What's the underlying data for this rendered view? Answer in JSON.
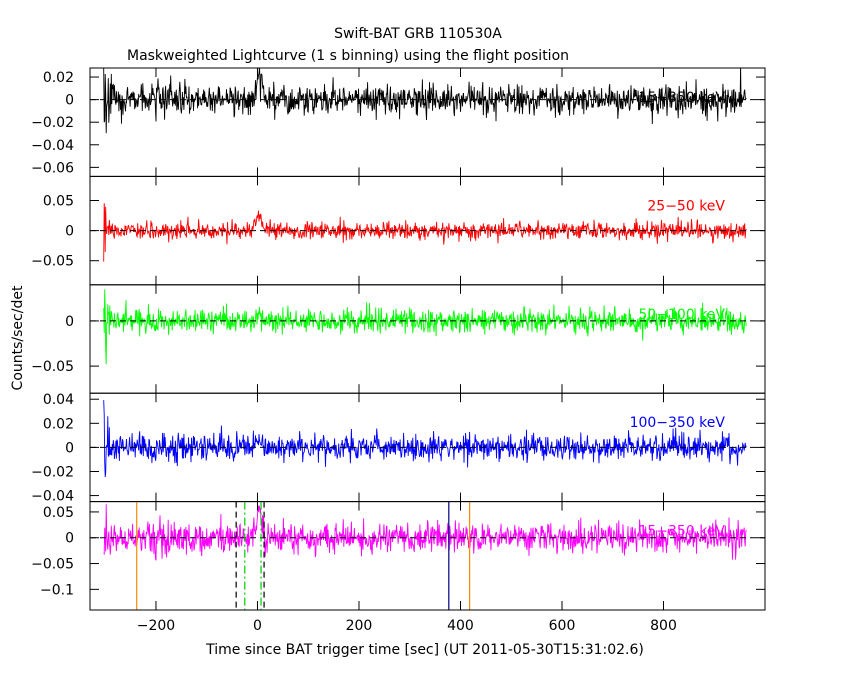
{
  "title": "Swift-BAT GRB 110530A",
  "subtitle": "Maskweighted Lightcurve (1 s binning) using the flight position",
  "xlabel": "Time since BAT trigger time [sec] (UT 2011-05-30T15:31:02.6)",
  "ylabel": "Counts/sec/det",
  "chart_data": {
    "type": "line",
    "title": "Swift-BAT GRB 110530A",
    "subtitle": "Maskweighted Lightcurve (1 s binning) using the flight position",
    "xlabel": "Time since BAT trigger time [sec] (UT 2011-05-30T15:31:02.6)",
    "ylabel": "Counts/sec/det",
    "xlim": [
      -330,
      1000
    ],
    "xticks": [
      -200,
      0,
      200,
      400,
      600,
      800
    ],
    "xtick_labels": [
      "−200",
      "0",
      "200",
      "400",
      "600",
      "800"
    ],
    "data_x_range": [
      -303,
      963
    ],
    "grid": false,
    "panels": [
      {
        "name": "15-350 keV",
        "label": "15−350 keV",
        "color": "#000000",
        "ylim": [
          -0.068,
          0.028
        ],
        "yticks": [
          0.02,
          0,
          -0.02,
          -0.04,
          -0.06
        ],
        "ytick_labels": [
          "0.02",
          "0",
          "−0.02",
          "−0.04",
          "−0.06"
        ],
        "noise_sigma": 0.0065,
        "early_spike_min": -0.066,
        "early_spike_max": 0.028,
        "peak_near_0": 0.024
      },
      {
        "name": "25-50 keV",
        "label": "25−50 keV",
        "color": "#ff0000",
        "ylim": [
          -0.09,
          0.09
        ],
        "yticks": [
          0.05,
          0,
          -0.05
        ],
        "ytick_labels": [
          "0.05",
          "0",
          "−0.05"
        ],
        "noise_sigma": 0.007,
        "early_spike_min": -0.085,
        "early_spike_max": 0.075,
        "peak_near_0": 0.025
      },
      {
        "name": "50-100 keV",
        "label": "50−100 keV",
        "color": "#00ff00",
        "ylim": [
          -0.08,
          0.04
        ],
        "yticks": [
          0,
          -0.05
        ],
        "ytick_labels": [
          "0",
          "−0.05"
        ],
        "noise_sigma": 0.0065,
        "early_spike_min": -0.076,
        "early_spike_max": 0.035,
        "peak_near_0": 0.01
      },
      {
        "name": "100-350 keV",
        "label": "100−350 keV",
        "color": "#0000ff",
        "ylim": [
          -0.045,
          0.045
        ],
        "yticks": [
          0.04,
          0.02,
          0,
          -0.02,
          -0.04
        ],
        "ytick_labels": [
          "0.04",
          "0.02",
          "0",
          "−0.02",
          "−0.04"
        ],
        "noise_sigma": 0.0055,
        "early_spike_min": -0.042,
        "early_spike_max": 0.04,
        "peak_near_0": 0.005
      },
      {
        "name": "15-350 keV (binned)",
        "label": "15−350 keV",
        "color": "#ff00ff",
        "ylim": [
          -0.14,
          0.07
        ],
        "yticks": [
          0.05,
          0,
          -0.05,
          -0.1
        ],
        "ytick_labels": [
          "0.05",
          "0",
          "−0.05",
          "−0.1"
        ],
        "noise_sigma": 0.014,
        "early_spike_min": -0.14,
        "early_spike_max": 0.065,
        "peak_near_0": 0.05,
        "markers": [
          {
            "name": "t-start-line",
            "x": -238,
            "color": "#ff8c00",
            "style": "solid"
          },
          {
            "name": "t-end-line",
            "x": 418,
            "color": "#ff8c00",
            "style": "solid"
          },
          {
            "name": "t100-start-line",
            "x": -42,
            "color": "#000000",
            "style": "dashed"
          },
          {
            "name": "t100-end-line",
            "x": 13,
            "color": "#000000",
            "style": "dashed"
          },
          {
            "name": "t90-start-line",
            "x": -25,
            "color": "#00cc00",
            "style": "dashdot"
          },
          {
            "name": "t90-end-line",
            "x": 7,
            "color": "#00cc00",
            "style": "dashdot"
          },
          {
            "name": "extra-line",
            "x": 377,
            "color": "#000080",
            "style": "solid"
          }
        ]
      }
    ]
  }
}
